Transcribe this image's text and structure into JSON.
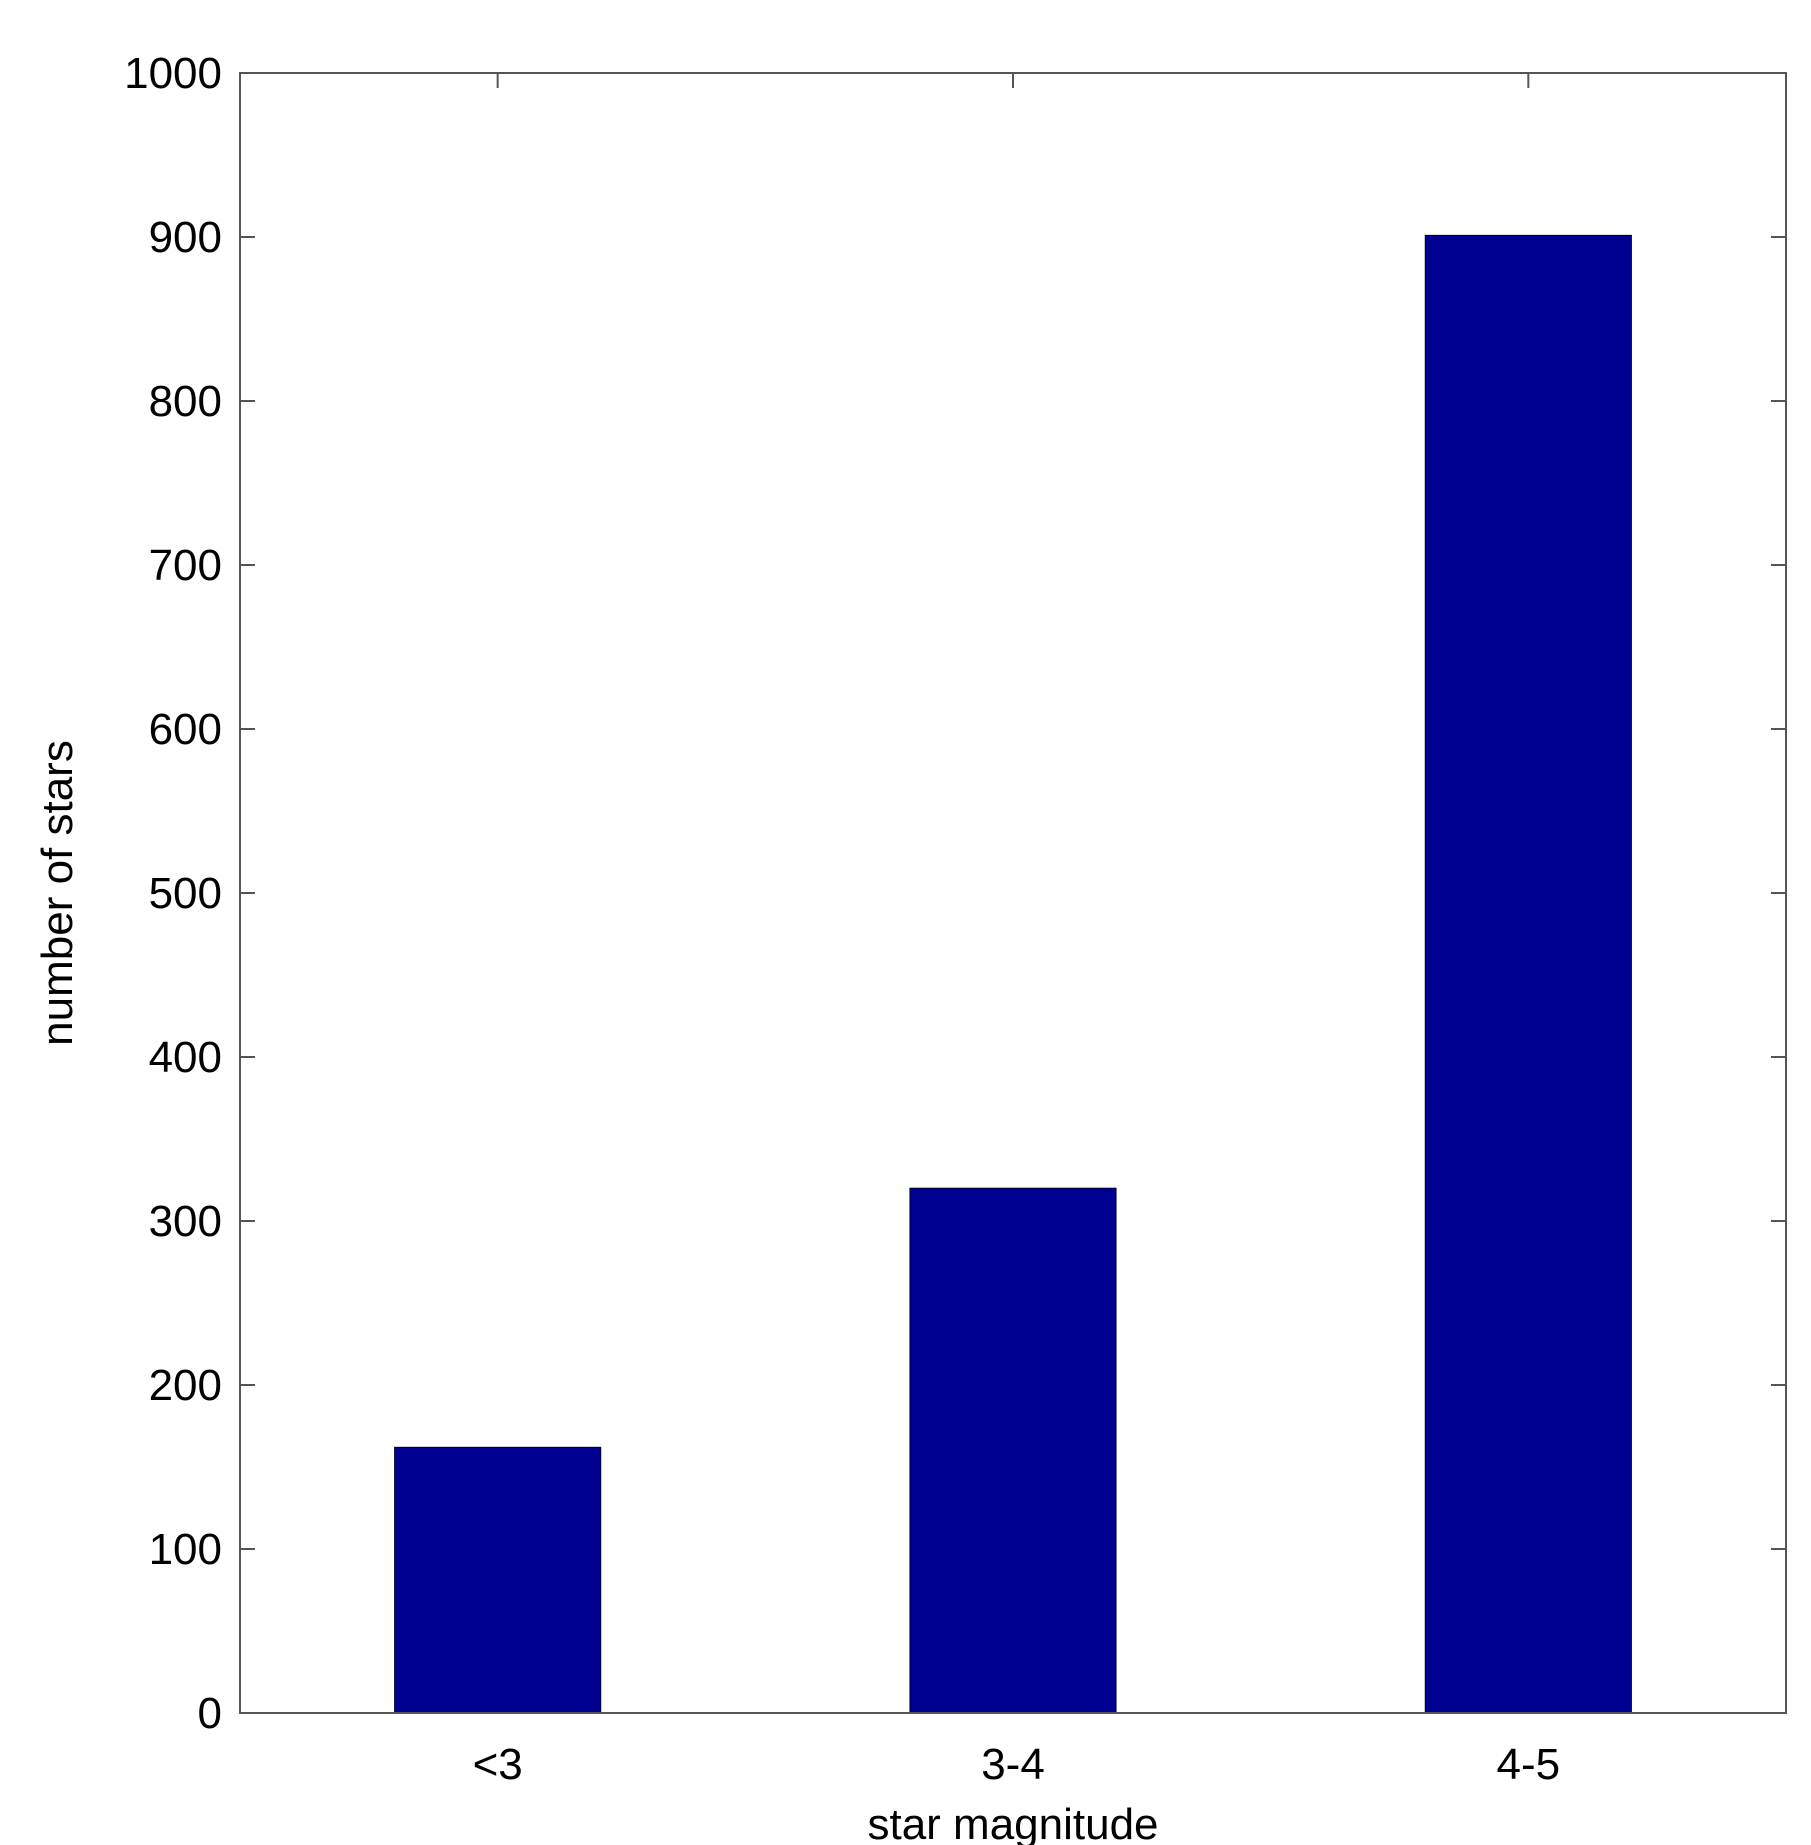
{
  "chart_data": {
    "type": "bar",
    "categories": [
      "<3",
      "3-4",
      "4-5"
    ],
    "values": [
      162,
      320,
      901
    ],
    "title": "",
    "xlabel": "star magnitude",
    "ylabel": "number of stars",
    "ylim": [
      0,
      1000
    ],
    "yticks": [
      0,
      100,
      200,
      300,
      400,
      500,
      600,
      700,
      800,
      900,
      1000
    ],
    "grid": false,
    "legend": "none",
    "bar_color": "#000091",
    "axis_color": "#555555"
  }
}
